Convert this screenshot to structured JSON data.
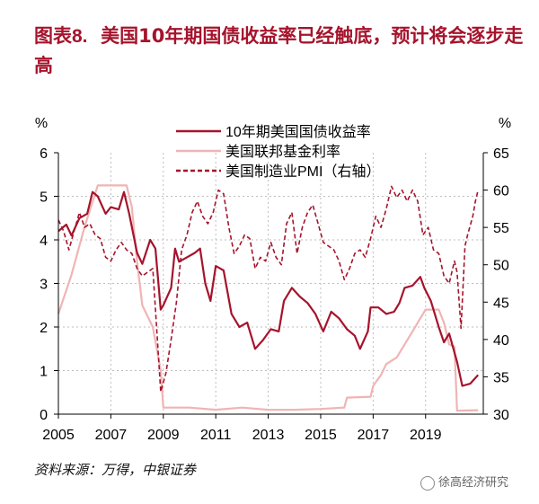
{
  "figure": {
    "label": "图表8.",
    "title": "美国10年期国债收益率已经触底，预计将会逐步走高",
    "source": "资料来源：万得，中银证券",
    "watermark": "徐高经济研究"
  },
  "colors": {
    "title": "#a5142c",
    "treasury": "#a5142c",
    "fedfunds": "#f0b4b4",
    "pmi": "#a5142c"
  },
  "chart_data": {
    "type": "line",
    "left_unit": "%",
    "right_unit": "%",
    "x_ticks": [
      "2005",
      "2007",
      "2009",
      "2011",
      "2013",
      "2015",
      "2017",
      "2019"
    ],
    "xlim": [
      2005,
      2021.2
    ],
    "ylim": [
      0,
      6
    ],
    "ylim_right": [
      30,
      65
    ],
    "y_ticks": [
      "0",
      "1",
      "2",
      "3",
      "4",
      "5",
      "6"
    ],
    "y_ticks_right": [
      "30",
      "35",
      "40",
      "45",
      "50",
      "55",
      "60",
      "65"
    ],
    "grid": "dotted",
    "legend_position": "top-center",
    "series": [
      {
        "name": "10年期美国国债收益率",
        "axis": "left",
        "style": "solid",
        "points": [
          [
            2005.0,
            4.2
          ],
          [
            2005.3,
            4.35
          ],
          [
            2005.5,
            4.1
          ],
          [
            2005.8,
            4.5
          ],
          [
            2006.1,
            4.6
          ],
          [
            2006.3,
            5.1
          ],
          [
            2006.5,
            5.0
          ],
          [
            2006.8,
            4.6
          ],
          [
            2007.0,
            4.75
          ],
          [
            2007.3,
            4.7
          ],
          [
            2007.5,
            5.1
          ],
          [
            2007.7,
            4.6
          ],
          [
            2008.0,
            3.7
          ],
          [
            2008.2,
            3.45
          ],
          [
            2008.5,
            4.0
          ],
          [
            2008.7,
            3.8
          ],
          [
            2008.9,
            2.4
          ],
          [
            2009.0,
            2.5
          ],
          [
            2009.3,
            2.9
          ],
          [
            2009.45,
            3.8
          ],
          [
            2009.6,
            3.5
          ],
          [
            2009.9,
            3.6
          ],
          [
            2010.2,
            3.7
          ],
          [
            2010.4,
            3.8
          ],
          [
            2010.6,
            3.0
          ],
          [
            2010.8,
            2.6
          ],
          [
            2011.0,
            3.4
          ],
          [
            2011.3,
            3.3
          ],
          [
            2011.6,
            2.3
          ],
          [
            2011.9,
            2.0
          ],
          [
            2012.2,
            2.1
          ],
          [
            2012.5,
            1.5
          ],
          [
            2012.8,
            1.7
          ],
          [
            2013.1,
            1.95
          ],
          [
            2013.4,
            1.9
          ],
          [
            2013.6,
            2.6
          ],
          [
            2013.9,
            2.9
          ],
          [
            2014.2,
            2.7
          ],
          [
            2014.5,
            2.55
          ],
          [
            2014.8,
            2.3
          ],
          [
            2015.1,
            1.9
          ],
          [
            2015.4,
            2.35
          ],
          [
            2015.7,
            2.2
          ],
          [
            2016.0,
            1.95
          ],
          [
            2016.3,
            1.8
          ],
          [
            2016.5,
            1.5
          ],
          [
            2016.8,
            1.9
          ],
          [
            2016.9,
            2.45
          ],
          [
            2017.2,
            2.45
          ],
          [
            2017.5,
            2.3
          ],
          [
            2017.8,
            2.35
          ],
          [
            2018.0,
            2.55
          ],
          [
            2018.2,
            2.9
          ],
          [
            2018.5,
            2.95
          ],
          [
            2018.8,
            3.15
          ],
          [
            2018.95,
            2.9
          ],
          [
            2019.2,
            2.6
          ],
          [
            2019.5,
            2.0
          ],
          [
            2019.7,
            1.65
          ],
          [
            2019.9,
            1.85
          ],
          [
            2020.2,
            1.2
          ],
          [
            2020.4,
            0.65
          ],
          [
            2020.7,
            0.7
          ],
          [
            2021.0,
            0.9
          ]
        ]
      },
      {
        "name": "美国联邦基金利率",
        "axis": "left",
        "style": "solid",
        "points": [
          [
            2005.0,
            2.3
          ],
          [
            2005.5,
            3.2
          ],
          [
            2006.0,
            4.3
          ],
          [
            2006.5,
            5.25
          ],
          [
            2007.0,
            5.25
          ],
          [
            2007.6,
            5.25
          ],
          [
            2007.8,
            4.75
          ],
          [
            2008.0,
            3.5
          ],
          [
            2008.2,
            2.5
          ],
          [
            2008.6,
            2.0
          ],
          [
            2008.9,
            1.0
          ],
          [
            2009.0,
            0.15
          ],
          [
            2010.0,
            0.15
          ],
          [
            2011.0,
            0.1
          ],
          [
            2012.0,
            0.15
          ],
          [
            2013.0,
            0.1
          ],
          [
            2014.0,
            0.1
          ],
          [
            2015.0,
            0.12
          ],
          [
            2015.9,
            0.15
          ],
          [
            2016.0,
            0.38
          ],
          [
            2016.9,
            0.4
          ],
          [
            2017.0,
            0.65
          ],
          [
            2017.3,
            0.9
          ],
          [
            2017.5,
            1.15
          ],
          [
            2017.9,
            1.3
          ],
          [
            2018.2,
            1.6
          ],
          [
            2018.5,
            1.9
          ],
          [
            2018.8,
            2.2
          ],
          [
            2019.0,
            2.4
          ],
          [
            2019.5,
            2.4
          ],
          [
            2019.7,
            2.1
          ],
          [
            2019.9,
            1.6
          ],
          [
            2020.1,
            1.55
          ],
          [
            2020.2,
            0.08
          ],
          [
            2021.0,
            0.09
          ]
        ]
      },
      {
        "name": "美国制造业PMI（右轴）",
        "axis": "right",
        "style": "dashed",
        "points": [
          [
            2005.0,
            56.0
          ],
          [
            2005.2,
            54.5
          ],
          [
            2005.4,
            52.0
          ],
          [
            2005.6,
            54.5
          ],
          [
            2005.8,
            57.0
          ],
          [
            2006.0,
            55.0
          ],
          [
            2006.2,
            55.5
          ],
          [
            2006.4,
            54.0
          ],
          [
            2006.6,
            53.5
          ],
          [
            2006.8,
            51.0
          ],
          [
            2007.0,
            50.5
          ],
          [
            2007.2,
            52.0
          ],
          [
            2007.4,
            53.0
          ],
          [
            2007.6,
            52.0
          ],
          [
            2007.8,
            51.5
          ],
          [
            2008.0,
            49.5
          ],
          [
            2008.2,
            48.5
          ],
          [
            2008.4,
            49.0
          ],
          [
            2008.6,
            49.5
          ],
          [
            2008.8,
            38.5
          ],
          [
            2008.9,
            33.0
          ],
          [
            2009.1,
            35.5
          ],
          [
            2009.3,
            40.0
          ],
          [
            2009.5,
            45.0
          ],
          [
            2009.7,
            52.0
          ],
          [
            2009.9,
            54.0
          ],
          [
            2010.1,
            57.0
          ],
          [
            2010.3,
            58.5
          ],
          [
            2010.5,
            56.5
          ],
          [
            2010.7,
            55.5
          ],
          [
            2010.9,
            57.0
          ],
          [
            2011.1,
            60.0
          ],
          [
            2011.3,
            59.5
          ],
          [
            2011.5,
            55.0
          ],
          [
            2011.7,
            51.5
          ],
          [
            2011.9,
            52.5
          ],
          [
            2012.1,
            54.0
          ],
          [
            2012.3,
            53.5
          ],
          [
            2012.5,
            49.5
          ],
          [
            2012.7,
            51.0
          ],
          [
            2012.9,
            50.5
          ],
          [
            2013.1,
            53.0
          ],
          [
            2013.3,
            51.0
          ],
          [
            2013.5,
            50.0
          ],
          [
            2013.7,
            55.5
          ],
          [
            2013.9,
            57.0
          ],
          [
            2014.1,
            51.5
          ],
          [
            2014.3,
            55.0
          ],
          [
            2014.5,
            57.0
          ],
          [
            2014.7,
            58.0
          ],
          [
            2014.9,
            55.5
          ],
          [
            2015.1,
            53.0
          ],
          [
            2015.3,
            52.5
          ],
          [
            2015.5,
            52.0
          ],
          [
            2015.7,
            50.5
          ],
          [
            2015.9,
            48.0
          ],
          [
            2016.1,
            49.5
          ],
          [
            2016.3,
            51.5
          ],
          [
            2016.5,
            52.0
          ],
          [
            2016.7,
            51.0
          ],
          [
            2016.9,
            53.5
          ],
          [
            2017.1,
            56.5
          ],
          [
            2017.3,
            55.0
          ],
          [
            2017.5,
            57.5
          ],
          [
            2017.7,
            60.5
          ],
          [
            2017.9,
            59.0
          ],
          [
            2018.1,
            60.0
          ],
          [
            2018.3,
            58.5
          ],
          [
            2018.5,
            60.0
          ],
          [
            2018.7,
            58.5
          ],
          [
            2018.9,
            54.0
          ],
          [
            2019.1,
            55.0
          ],
          [
            2019.3,
            52.0
          ],
          [
            2019.5,
            51.5
          ],
          [
            2019.7,
            48.5
          ],
          [
            2019.9,
            47.5
          ],
          [
            2020.1,
            50.5
          ],
          [
            2020.2,
            49.0
          ],
          [
            2020.35,
            41.5
          ],
          [
            2020.5,
            52.5
          ],
          [
            2020.6,
            54.0
          ],
          [
            2020.8,
            56.5
          ],
          [
            2020.9,
            58.5
          ],
          [
            2021.0,
            60.0
          ]
        ]
      }
    ]
  }
}
